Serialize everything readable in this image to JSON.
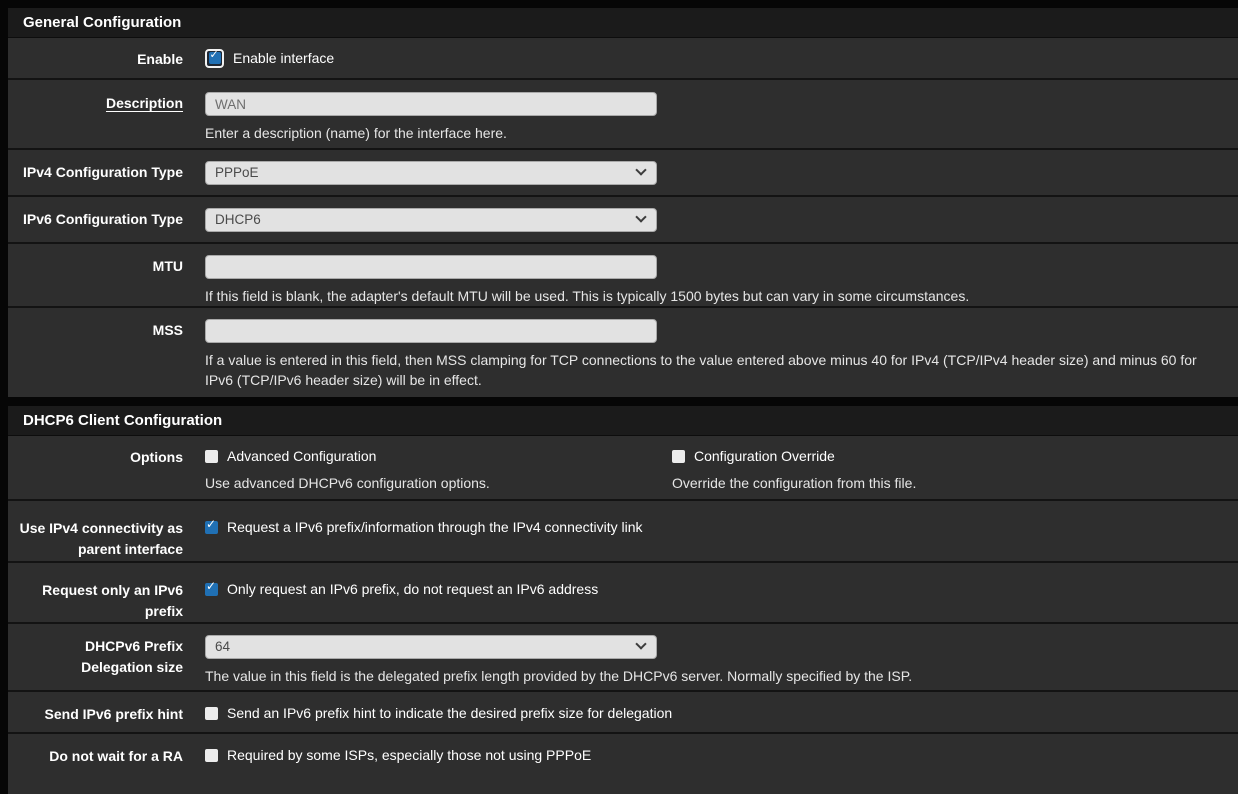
{
  "colors": {
    "page_background": "#060606",
    "panel_heading_background": "#1b1b1b",
    "row_background": "#2e2e2e",
    "checkbox_checked_blue": "#2070b4",
    "input_background": "#e2e2e2",
    "label_text": "#ffffff",
    "help_text": "#e6e6e6"
  },
  "icons": {
    "chevron_down": "chevron-down (css shape)",
    "checkmark": "✓"
  },
  "panels": [
    {
      "title": "General Configuration",
      "rows": [
        {
          "label": "Enable",
          "checkbox": {
            "text": "Enable interface",
            "checked": true,
            "focused": true
          }
        },
        {
          "label": "Description",
          "input": {
            "value": "WAN"
          },
          "help": "Enter a description (name) for the interface here."
        },
        {
          "label": "IPv4 Configuration Type",
          "select": {
            "value": "PPPoE"
          }
        },
        {
          "label": "IPv6 Configuration Type",
          "select": {
            "value": "DHCP6"
          }
        },
        {
          "label": "MTU",
          "input": {
            "value": ""
          },
          "help": "If this field is blank, the adapter's default MTU will be used. This is typically 1500 bytes but can vary in some circumstances."
        },
        {
          "label": "MSS",
          "input": {
            "value": ""
          },
          "help": "If a value is entered in this field, then MSS clamping for TCP connections to the value entered above minus 40 for IPv4 (TCP/IPv4 header size) and minus 60 for IPv6 (TCP/IPv6 header size) will be in effect."
        }
      ]
    },
    {
      "title": "DHCP6 Client Configuration",
      "rows": [
        {
          "label": "Options",
          "options": [
            {
              "text": "Advanced Configuration",
              "checked": false,
              "help": "Use advanced DHCPv6 configuration options."
            },
            {
              "text": "Configuration Override",
              "checked": false,
              "help": "Override the configuration from this file."
            }
          ]
        },
        {
          "label": "Use IPv4 connectivity as parent interface",
          "checkbox": {
            "text": "Request a IPv6 prefix/information through the IPv4 connectivity link",
            "checked": true
          }
        },
        {
          "label": "Request only an IPv6 prefix",
          "checkbox": {
            "text": "Only request an IPv6 prefix, do not request an IPv6 address",
            "checked": true
          }
        },
        {
          "label": "DHCPv6 Prefix Delegation size",
          "select": {
            "value": "64"
          },
          "help": "The value in this field is the delegated prefix length provided by the DHCPv6 server. Normally specified by the ISP."
        },
        {
          "label": "Send IPv6 prefix hint",
          "checkbox": {
            "text": "Send an IPv6 prefix hint to indicate the desired prefix size for delegation",
            "checked": false
          }
        },
        {
          "label": "Do not wait for a RA",
          "checkbox": {
            "text": "Required by some ISPs, especially those not using PPPoE",
            "checked": false
          }
        }
      ]
    }
  ]
}
